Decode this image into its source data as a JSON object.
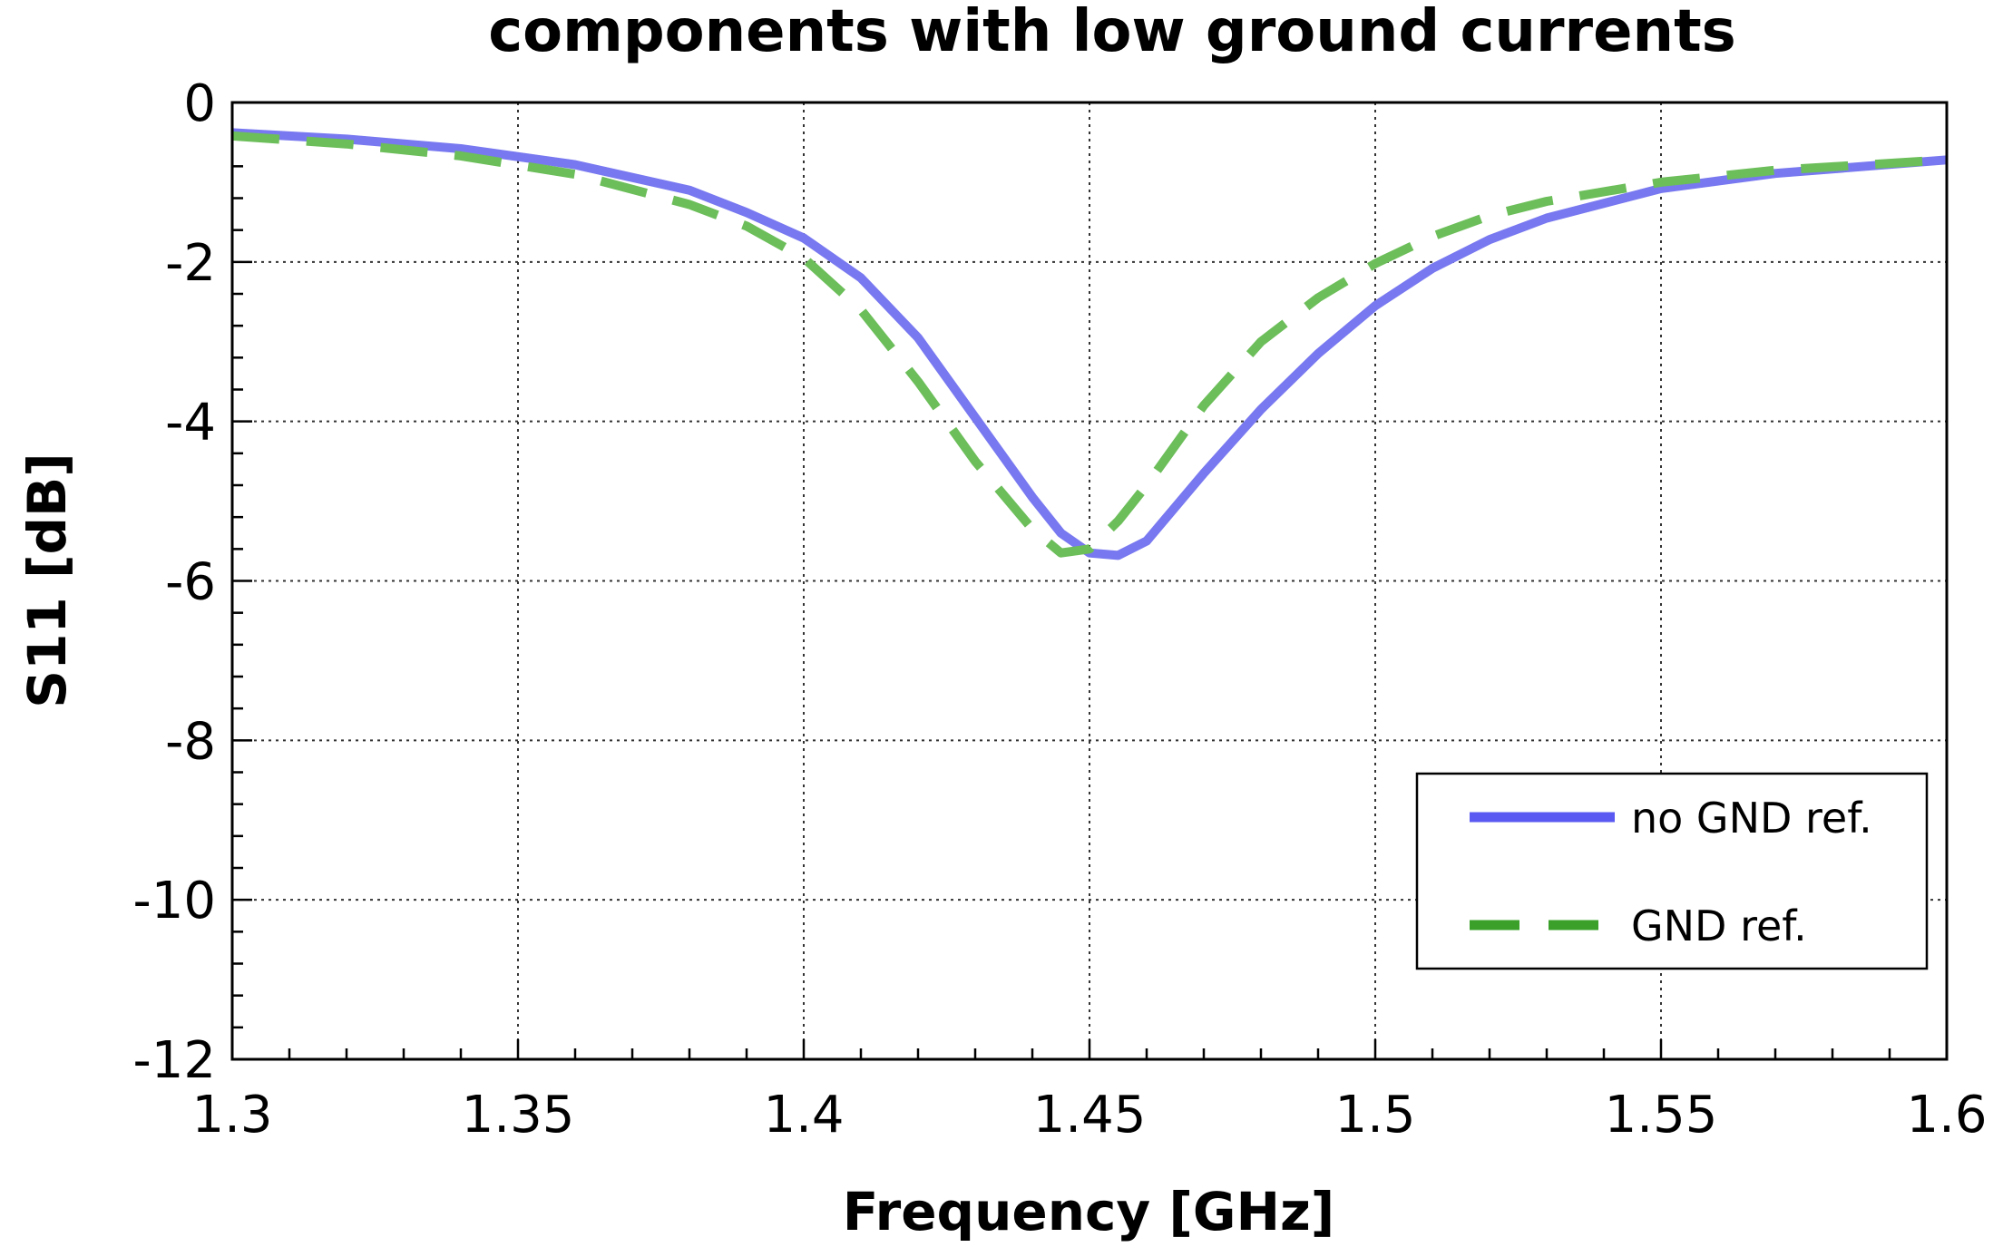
{
  "chart_data": {
    "type": "line",
    "title": "components with low ground currents",
    "xlabel": "Frequency [GHz]",
    "ylabel": "S11 [dB]",
    "xlim": [
      1.3,
      1.6
    ],
    "ylim": [
      -12,
      0
    ],
    "x_ticks": [
      "1.3",
      "1.35",
      "1.4",
      "1.45",
      "1.5",
      "1.55",
      "1.6"
    ],
    "y_ticks": [
      "0",
      "-2",
      "-4",
      "-6",
      "-8",
      "-10",
      "-12"
    ],
    "grid": true,
    "legend_position": "bottom-right",
    "series": [
      {
        "name": "no GND ref.",
        "color": "#7878f0",
        "style": "solid",
        "x": [
          1.3,
          1.32,
          1.34,
          1.36,
          1.38,
          1.39,
          1.4,
          1.41,
          1.42,
          1.43,
          1.44,
          1.445,
          1.45,
          1.455,
          1.46,
          1.47,
          1.48,
          1.49,
          1.5,
          1.51,
          1.52,
          1.53,
          1.55,
          1.57,
          1.6
        ],
        "y": [
          -0.38,
          -0.46,
          -0.58,
          -0.78,
          -1.1,
          -1.38,
          -1.7,
          -2.2,
          -2.95,
          -3.95,
          -4.95,
          -5.4,
          -5.65,
          -5.68,
          -5.5,
          -4.65,
          -3.85,
          -3.15,
          -2.55,
          -2.08,
          -1.72,
          -1.45,
          -1.08,
          -0.89,
          -0.72
        ]
      },
      {
        "name": "GND ref.",
        "color": "#6cbe5a",
        "style": "dashed",
        "x": [
          1.3,
          1.32,
          1.34,
          1.36,
          1.38,
          1.39,
          1.4,
          1.41,
          1.42,
          1.43,
          1.44,
          1.445,
          1.45,
          1.455,
          1.46,
          1.47,
          1.48,
          1.49,
          1.5,
          1.51,
          1.52,
          1.53,
          1.55,
          1.57,
          1.6
        ],
        "y": [
          -0.42,
          -0.52,
          -0.67,
          -0.9,
          -1.28,
          -1.55,
          -1.95,
          -2.6,
          -3.5,
          -4.5,
          -5.35,
          -5.65,
          -5.6,
          -5.25,
          -4.8,
          -3.8,
          -3.0,
          -2.45,
          -2.02,
          -1.68,
          -1.42,
          -1.24,
          -1.0,
          -0.85,
          -0.72
        ]
      }
    ]
  }
}
